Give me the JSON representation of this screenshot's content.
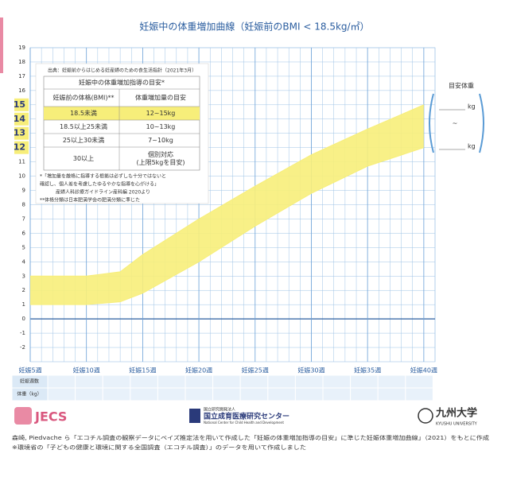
{
  "chart_data": {
    "type": "band",
    "title": "妊娠中の体重増加曲線（妊娠前のBMI < 18.5kg/㎡）",
    "x": [
      5,
      10,
      13,
      15,
      20,
      25,
      30,
      35,
      40
    ],
    "series": [
      {
        "name": "upper",
        "color": "#f7ee7a",
        "values": [
          3,
          3,
          3.3,
          4.5,
          7,
          9.3,
          11.5,
          13.3,
          15
        ]
      },
      {
        "name": "lower",
        "color": "#f7ee7a",
        "values": [
          1,
          1,
          1.2,
          1.8,
          4,
          6.5,
          8.8,
          10.7,
          12
        ]
      }
    ],
    "xlim": [
      5,
      41
    ],
    "ylim": [
      -3,
      19
    ],
    "xticks": [
      {
        "value": 5,
        "label": "妊娠5週"
      },
      {
        "value": 10,
        "label": "妊娠10週"
      },
      {
        "value": 15,
        "label": "妊娠15週"
      },
      {
        "value": 20,
        "label": "妊娠20週"
      },
      {
        "value": 25,
        "label": "妊娠25週"
      },
      {
        "value": 30,
        "label": "妊娠30週"
      },
      {
        "value": 35,
        "label": "妊娠35週"
      },
      {
        "value": 40,
        "label": "妊娠40週"
      }
    ],
    "yticks": [
      -2,
      -1,
      0,
      1,
      2,
      3,
      4,
      5,
      6,
      7,
      8,
      9,
      10,
      11,
      12,
      13,
      14,
      15,
      16,
      17,
      18,
      19
    ],
    "highlight_yrange": [
      12,
      15
    ],
    "grid": true
  },
  "source": "出典：妊娠前からはじめる妊産婦のための食生活指針（2021年3月）",
  "table": {
    "title": "妊娠中の体重増加指導の目安*",
    "header": [
      "妊娠前の体格(BMI)**",
      "体重増加量の目安"
    ],
    "rows": [
      [
        "18.5未満",
        "12~15kg"
      ],
      [
        "18.5以上25未満",
        "10~13kg"
      ],
      [
        "25以上30未満",
        "7~10kg"
      ],
      [
        "30以上",
        [
          "個別対応",
          "(上限5kgを目安)"
        ]
      ]
    ],
    "notes": [
      "*「増加量を厳格に指導する根拠は必ずしも十分ではないと",
      "確認し、個人差を考慮したゆるやかな指導を心がける」",
      "産婦人科診療ガイドライン産科編 2020より",
      "**体格分類は日本肥満学会の肥満分類に準じた"
    ]
  },
  "target": {
    "title": "目安体重",
    "upper_unit": "kg",
    "sep": "~",
    "lower_unit": "kg"
  },
  "record": {
    "rows": [
      "妊娠週数",
      "体重（kg）"
    ]
  },
  "logos": {
    "jecs": "JECS",
    "ncchd": "国立成育医療研究センター",
    "ncchd_sub": "国立研究開発法人",
    "ncchd_en": "National Center for Child Health and Development",
    "kyushu": "九州大学",
    "kyushu_en": "KYUSHU UNIVERSITY"
  },
  "footer": [
    "森崎, Piedvache ら「エコチル調査の観察データにベイズ推定法を用いて作成した「妊娠の体重増加指導の目安」に準じた妊娠体重増加曲線」（2021）をもとに作成",
    "※環境省の「子どもの健康と環境に関する全国調査（エコチル調査）」のデータを用いて作成しました"
  ]
}
